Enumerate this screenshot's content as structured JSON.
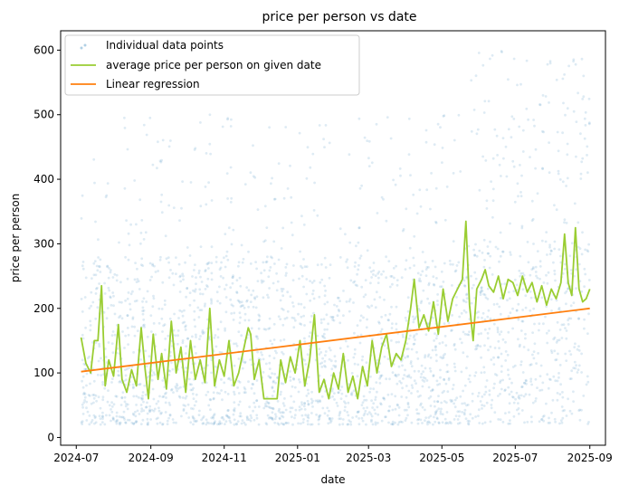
{
  "chart_data": {
    "type": "scatter",
    "title": "price per person vs date",
    "xlabel": "date",
    "ylabel": "price per person",
    "xlim": [
      "2024-06-18",
      "2025-09-14"
    ],
    "ylim": [
      -12,
      630
    ],
    "x_ticks": [
      "2024-07",
      "2024-09",
      "2024-11",
      "2025-01",
      "2025-03",
      "2025-05",
      "2025-07",
      "2025-09"
    ],
    "x_tick_dates": [
      "2024-07-01",
      "2024-09-01",
      "2024-11-01",
      "2025-01-01",
      "2025-03-01",
      "2025-05-01",
      "2025-07-01",
      "2025-09-01"
    ],
    "y_ticks": [
      0,
      100,
      200,
      300,
      400,
      500,
      600
    ],
    "grid": false,
    "legend_position": "top-left",
    "series": [
      {
        "name": "Individual data points",
        "kind": "scatter",
        "color": "#1f77b4",
        "alpha": 0.15,
        "x_range": [
          "2024-07-05",
          "2025-09-01"
        ],
        "y_range": [
          15,
          600
        ],
        "density_note_ranges": [
          {
            "from": "2024-07-05",
            "to": "2025-05-25",
            "y_typical": [
              20,
              300
            ]
          },
          {
            "from": "2025-05-25",
            "to": "2025-09-01",
            "y_typical": [
              20,
              600
            ]
          }
        ]
      },
      {
        "name": "average price per person on given date",
        "kind": "line",
        "color": "#9acd32",
        "points": [
          [
            "2024-07-05",
            155
          ],
          [
            "2024-07-09",
            115
          ],
          [
            "2024-07-13",
            100
          ],
          [
            "2024-07-16",
            150
          ],
          [
            "2024-07-19",
            150
          ],
          [
            "2024-07-22",
            235
          ],
          [
            "2024-07-25",
            80
          ],
          [
            "2024-07-28",
            120
          ],
          [
            "2024-08-01",
            95
          ],
          [
            "2024-08-05",
            175
          ],
          [
            "2024-08-08",
            90
          ],
          [
            "2024-08-12",
            70
          ],
          [
            "2024-08-16",
            105
          ],
          [
            "2024-08-20",
            80
          ],
          [
            "2024-08-24",
            170
          ],
          [
            "2024-08-27",
            110
          ],
          [
            "2024-08-30",
            60
          ],
          [
            "2024-09-03",
            160
          ],
          [
            "2024-09-07",
            90
          ],
          [
            "2024-09-10",
            130
          ],
          [
            "2024-09-14",
            75
          ],
          [
            "2024-09-18",
            180
          ],
          [
            "2024-09-22",
            100
          ],
          [
            "2024-09-26",
            140
          ],
          [
            "2024-09-30",
            70
          ],
          [
            "2024-10-04",
            150
          ],
          [
            "2024-10-08",
            90
          ],
          [
            "2024-10-12",
            120
          ],
          [
            "2024-10-16",
            85
          ],
          [
            "2024-10-20",
            200
          ],
          [
            "2024-10-24",
            80
          ],
          [
            "2024-10-28",
            120
          ],
          [
            "2024-11-01",
            95
          ],
          [
            "2024-11-05",
            150
          ],
          [
            "2024-11-09",
            80
          ],
          [
            "2024-11-13",
            100
          ],
          [
            "2024-11-17",
            135
          ],
          [
            "2024-11-21",
            170
          ],
          [
            "2024-11-23",
            160
          ],
          [
            "2024-11-26",
            90
          ],
          [
            "2024-11-30",
            120
          ],
          [
            "2024-12-04",
            60
          ],
          [
            "2024-12-11",
            60
          ],
          [
            "2024-12-15",
            60
          ],
          [
            "2024-12-18",
            120
          ],
          [
            "2024-12-22",
            85
          ],
          [
            "2024-12-26",
            125
          ],
          [
            "2024-12-30",
            100
          ],
          [
            "2025-01-03",
            150
          ],
          [
            "2025-01-07",
            80
          ],
          [
            "2025-01-11",
            120
          ],
          [
            "2025-01-15",
            190
          ],
          [
            "2025-01-19",
            70
          ],
          [
            "2025-01-23",
            90
          ],
          [
            "2025-01-27",
            60
          ],
          [
            "2025-01-31",
            100
          ],
          [
            "2025-02-04",
            75
          ],
          [
            "2025-02-08",
            130
          ],
          [
            "2025-02-12",
            70
          ],
          [
            "2025-02-16",
            95
          ],
          [
            "2025-02-20",
            60
          ],
          [
            "2025-02-24",
            110
          ],
          [
            "2025-02-28",
            80
          ],
          [
            "2025-03-04",
            150
          ],
          [
            "2025-03-08",
            100
          ],
          [
            "2025-03-12",
            140
          ],
          [
            "2025-03-16",
            160
          ],
          [
            "2025-03-20",
            110
          ],
          [
            "2025-03-24",
            130
          ],
          [
            "2025-03-28",
            120
          ],
          [
            "2025-04-01",
            150
          ],
          [
            "2025-04-05",
            200
          ],
          [
            "2025-04-08",
            245
          ],
          [
            "2025-04-12",
            170
          ],
          [
            "2025-04-16",
            190
          ],
          [
            "2025-04-20",
            165
          ],
          [
            "2025-04-24",
            210
          ],
          [
            "2025-04-28",
            160
          ],
          [
            "2025-05-02",
            230
          ],
          [
            "2025-05-06",
            180
          ],
          [
            "2025-05-10",
            215
          ],
          [
            "2025-05-14",
            230
          ],
          [
            "2025-05-18",
            245
          ],
          [
            "2025-05-21",
            335
          ],
          [
            "2025-05-24",
            205
          ],
          [
            "2025-05-27",
            150
          ],
          [
            "2025-05-30",
            230
          ],
          [
            "2025-06-03",
            245
          ],
          [
            "2025-06-06",
            260
          ],
          [
            "2025-06-09",
            235
          ],
          [
            "2025-06-13",
            225
          ],
          [
            "2025-06-17",
            250
          ],
          [
            "2025-06-21",
            215
          ],
          [
            "2025-06-25",
            245
          ],
          [
            "2025-06-29",
            240
          ],
          [
            "2025-07-03",
            220
          ],
          [
            "2025-07-07",
            250
          ],
          [
            "2025-07-11",
            225
          ],
          [
            "2025-07-15",
            240
          ],
          [
            "2025-07-19",
            210
          ],
          [
            "2025-07-23",
            235
          ],
          [
            "2025-07-27",
            205
          ],
          [
            "2025-07-31",
            230
          ],
          [
            "2025-08-04",
            215
          ],
          [
            "2025-08-08",
            240
          ],
          [
            "2025-08-11",
            315
          ],
          [
            "2025-08-14",
            240
          ],
          [
            "2025-08-17",
            220
          ],
          [
            "2025-08-20",
            325
          ],
          [
            "2025-08-23",
            230
          ],
          [
            "2025-08-26",
            210
          ],
          [
            "2025-08-29",
            215
          ],
          [
            "2025-09-01",
            230
          ]
        ]
      },
      {
        "name": "Linear regression",
        "kind": "line",
        "color": "#ff7f0e",
        "points": [
          [
            "2024-07-05",
            102
          ],
          [
            "2025-09-01",
            200
          ]
        ]
      }
    ]
  }
}
